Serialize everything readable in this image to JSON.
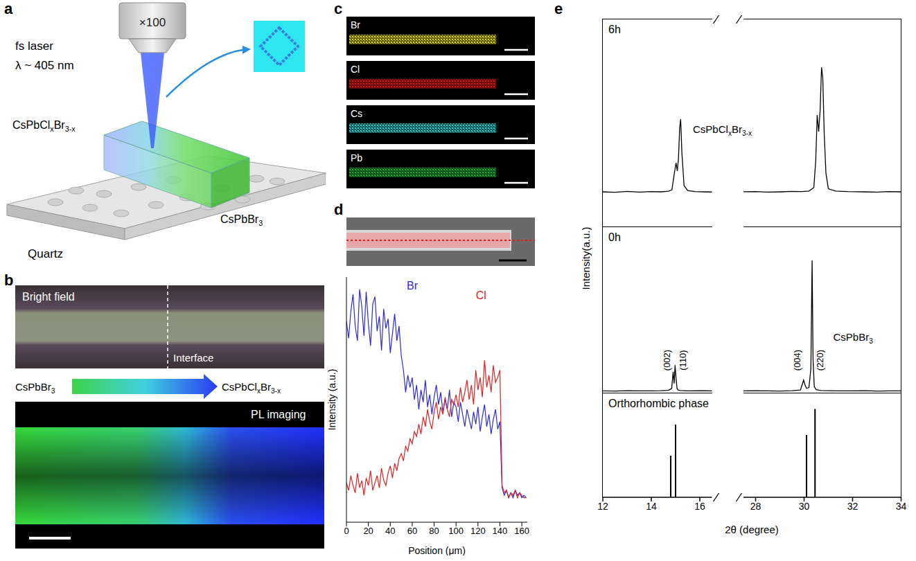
{
  "figure": {
    "panels": {
      "a": {
        "letter": "a",
        "objective": "×100",
        "laser": "fs laser",
        "wavelength": "λ ~ 405 nm",
        "material_left": "CsPbClxBr3-x",
        "material_right": "CsPbBr3",
        "substrate": "Quartz"
      },
      "b": {
        "letter": "b",
        "top_image": "Bright field",
        "interface": "Interface",
        "gradient_from": "CsPbBr3",
        "gradient_to": "CsPbClxBr3-x",
        "bottom_image": "PL imaging"
      },
      "c": {
        "letter": "c",
        "maps": [
          {
            "element": "Br",
            "color": "#d8d020"
          },
          {
            "element": "Cl",
            "color": "#d81818"
          },
          {
            "element": "Cs",
            "color": "#30c8c8"
          },
          {
            "element": "Pb",
            "color": "#20a838"
          }
        ]
      }
    }
  },
  "chart_data": [
    {
      "letter": "d",
      "type": "line",
      "xlabel": "Position (μm)",
      "ylabel": "Intensity (a.u.)",
      "xlim": [
        0,
        165
      ],
      "xticks": [
        0,
        20,
        40,
        60,
        80,
        100,
        120,
        140,
        160
      ],
      "ylim": [
        0,
        10
      ],
      "tick_labels": "x",
      "x": [
        0,
        2,
        4,
        6,
        8,
        10,
        12,
        14,
        16,
        18,
        20,
        22,
        24,
        26,
        28,
        30,
        32,
        34,
        36,
        38,
        40,
        42,
        44,
        46,
        48,
        50,
        52,
        54,
        56,
        58,
        60,
        62,
        64,
        66,
        68,
        70,
        72,
        74,
        76,
        78,
        80,
        82,
        84,
        86,
        88,
        90,
        92,
        94,
        96,
        98,
        100,
        102,
        104,
        106,
        108,
        110,
        112,
        114,
        116,
        118,
        120,
        122,
        124,
        126,
        128,
        130,
        132,
        134,
        136,
        138,
        140,
        142,
        144,
        146,
        148,
        150,
        152,
        154,
        156,
        158,
        160,
        162,
        164
      ],
      "series": [
        {
          "name": "Br",
          "color": "#2a2ad8",
          "values": [
            8.2,
            7.5,
            8.6,
            9.3,
            8.0,
            7.4,
            9.5,
            8.8,
            7.6,
            9.4,
            8.1,
            7.2,
            8.9,
            9.2,
            7.8,
            8.4,
            7.0,
            8.7,
            7.9,
            8.3,
            6.9,
            7.7,
            8.5,
            7.4,
            8.0,
            6.8,
            6.2,
            5.3,
            6.0,
            5.5,
            5.9,
            5.0,
            5.6,
            4.6,
            5.4,
            4.9,
            5.8,
            4.7,
            5.2,
            4.4,
            5.1,
            5.6,
            4.8,
            5.3,
            4.5,
            5.0,
            4.6,
            5.4,
            4.3,
            4.9,
            4.7,
            4.1,
            4.9,
            4.4,
            3.9,
            4.6,
            4.2,
            3.8,
            4.5,
            4.0,
            4.7,
            3.7,
            4.3,
            4.8,
            3.9,
            4.4,
            3.6,
            4.2,
            4.6,
            3.8,
            4.1,
            1.4,
            1.1,
            1.3,
            1.0,
            1.2,
            1.0,
            1.3,
            1.1,
            1.2,
            1.0,
            1.1,
            1.0
          ]
        },
        {
          "name": "Cl",
          "color": "#e02020",
          "values": [
            1.6,
            1.3,
            1.9,
            1.5,
            1.2,
            2.0,
            1.4,
            1.7,
            1.1,
            1.8,
            1.5,
            2.1,
            1.3,
            1.6,
            1.9,
            1.4,
            2.2,
            1.7,
            1.5,
            2.0,
            2.3,
            1.8,
            2.4,
            2.1,
            2.6,
            2.8,
            2.5,
            3.1,
            2.9,
            3.4,
            3.2,
            3.7,
            3.5,
            4.0,
            3.6,
            4.3,
            3.9,
            4.6,
            4.1,
            3.8,
            4.5,
            4.9,
            4.2,
            4.7,
            4.4,
            5.1,
            4.6,
            4.3,
            5.0,
            4.8,
            5.2,
            4.7,
            5.5,
            4.9,
            5.3,
            5.8,
            5.0,
            5.6,
            4.8,
            6.2,
            5.4,
            5.9,
            5.1,
            6.6,
            5.5,
            6.0,
            5.3,
            6.4,
            5.7,
            5.9,
            6.2,
            1.5,
            1.2,
            1.3,
            1.0,
            1.2,
            1.1,
            1.3,
            1.0,
            1.2,
            1.1,
            1.0,
            1.0
          ]
        }
      ]
    },
    {
      "letter": "e",
      "type": "line",
      "xlabel": "2θ (degree)",
      "ylabel": "Intensity(a.u.)",
      "tick_labels": "x",
      "x_axes": [
        {
          "xlim": [
            12,
            16.5
          ],
          "xticks": [
            12,
            14,
            16
          ]
        },
        {
          "xlim": [
            27.5,
            34
          ],
          "xticks": [
            28,
            30,
            32,
            34
          ]
        }
      ],
      "rows": [
        {
          "title": "6h",
          "ylim": [
            0,
            10
          ],
          "series": [
            {
              "name": "CsPbClxBr3-x",
              "color": "#000000",
              "x": [
                12,
                12.5,
                13,
                13.5,
                14,
                14.4,
                14.7,
                14.85,
                14.95,
                15.02,
                15.07,
                15.12,
                15.17,
                15.21,
                15.26,
                15.35,
                15.5,
                15.8,
                16.2,
                16.6,
                27.4,
                28,
                28.5,
                29,
                29.5,
                29.9,
                30.2,
                30.4,
                30.48,
                30.54,
                30.6,
                30.66,
                30.72,
                30.77,
                30.83,
                30.9,
                31.0,
                31.3,
                31.8,
                32.5,
                33,
                33.5,
                34
              ],
              "values": [
                1.7,
                1.68,
                1.72,
                1.69,
                1.71,
                1.7,
                1.73,
                1.8,
                2.6,
                3.1,
                2.7,
                3.3,
                4.8,
                5.2,
                3.6,
                2.0,
                1.76,
                1.71,
                1.7,
                1.69,
                1.7,
                1.71,
                1.69,
                1.7,
                1.72,
                1.71,
                1.74,
                1.9,
                3.2,
                5.4,
                4.6,
                5.6,
                7.7,
                7.2,
                4.5,
                2.6,
                1.85,
                1.74,
                1.71,
                1.7,
                1.69,
                1.71,
                1.7
              ]
            }
          ]
        },
        {
          "title": "0h",
          "ylim": [
            0,
            10
          ],
          "series": [
            {
              "name": "CsPbBr3",
              "color": "#000000",
              "x": [
                12,
                12.5,
                13,
                13.5,
                14,
                14.4,
                14.7,
                14.84,
                14.9,
                14.94,
                14.98,
                15.02,
                15.06,
                15.1,
                15.2,
                15.5,
                16,
                16.6,
                27.4,
                28,
                28.5,
                29,
                29.5,
                29.85,
                29.98,
                30.04,
                30.1,
                30.2,
                30.28,
                30.33,
                30.37,
                30.42,
                30.5,
                30.7,
                31,
                31.5,
                32,
                32.5,
                33,
                33.5,
                34
              ],
              "values": [
                0.15,
                0.14,
                0.16,
                0.15,
                0.15,
                0.16,
                0.18,
                0.3,
                1.3,
                0.6,
                1.7,
                0.9,
                0.3,
                0.2,
                0.17,
                0.15,
                0.16,
                0.15,
                0.15,
                0.16,
                0.15,
                0.14,
                0.16,
                0.2,
                0.8,
                0.5,
                0.3,
                0.35,
                1.5,
                8.0,
                2.0,
                0.4,
                0.22,
                0.17,
                0.16,
                0.15,
                0.15,
                0.16,
                0.14,
                0.15,
                0.15
              ]
            }
          ],
          "peak_labels": [
            {
              "x": 14.9,
              "label": "(002)"
            },
            {
              "x": 14.98,
              "label": "(110)"
            },
            {
              "x": 29.98,
              "label": "(004)"
            },
            {
              "x": 30.33,
              "label": "(220)"
            }
          ]
        },
        {
          "title": "Orthorhombic phase",
          "type": "bar",
          "ylim": [
            0,
            1
          ],
          "color": "#000000",
          "x": [
            14.8,
            15.0,
            30.1,
            30.45
          ],
          "values": [
            0.4,
            0.7,
            0.6,
            0.85
          ]
        }
      ]
    }
  ]
}
